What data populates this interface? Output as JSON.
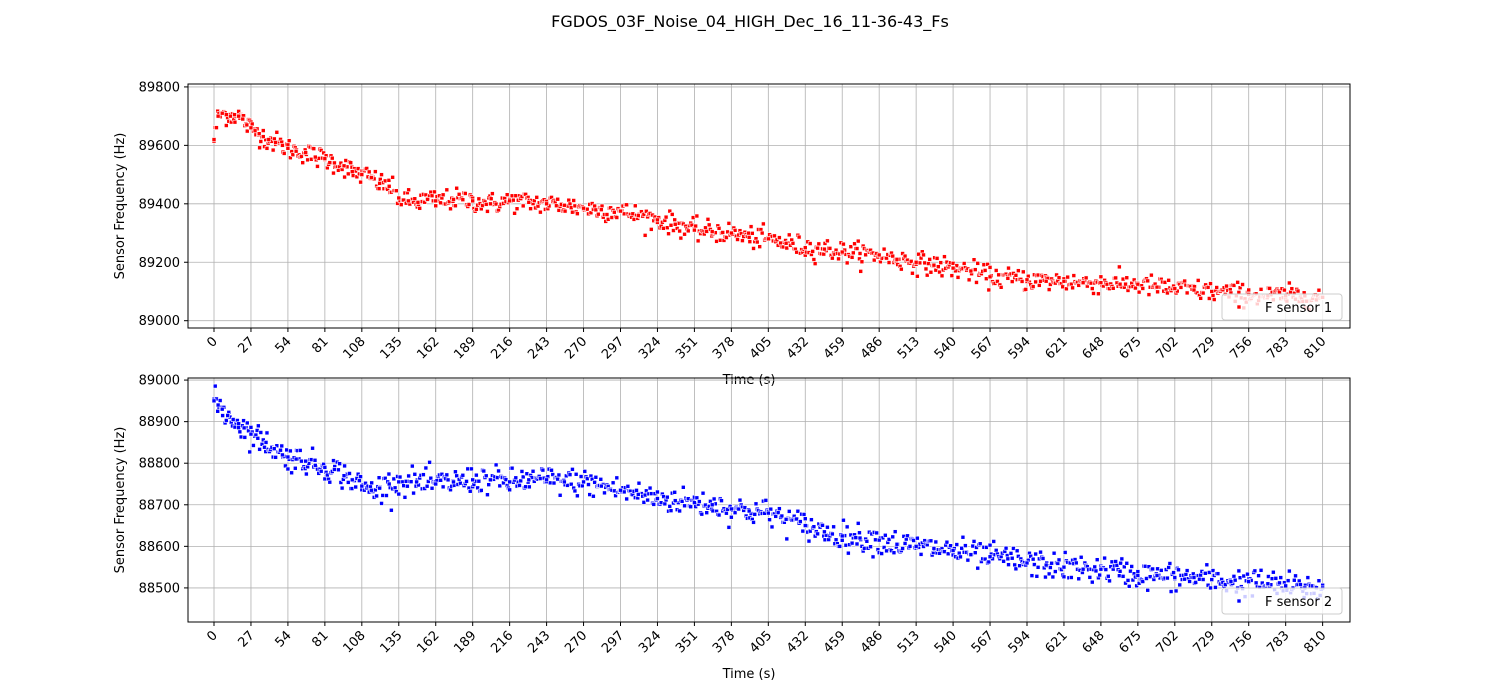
{
  "figure": {
    "suptitle": "FGDOS_03F_Noise_04_HIGH_Dec_16_11-36-43_Fs"
  },
  "chart_data": [
    {
      "type": "scatter",
      "title": "",
      "xlabel": "Time (s)",
      "ylabel": "Sensor Frequency (Hz)",
      "xlim": [
        -19,
        830
      ],
      "ylim": [
        88975,
        89810
      ],
      "xticks": [
        0,
        27,
        54,
        81,
        108,
        135,
        162,
        189,
        216,
        243,
        270,
        297,
        324,
        351,
        378,
        405,
        432,
        459,
        486,
        513,
        540,
        567,
        594,
        621,
        648,
        675,
        702,
        729,
        756,
        783,
        810
      ],
      "yticks": [
        89000,
        89200,
        89400,
        89600,
        89800
      ],
      "grid": true,
      "legend_position": "lower-right",
      "series": [
        {
          "name": "F sensor 1",
          "color": "#ff0000",
          "x": [
            0,
            3,
            6,
            9,
            12,
            15,
            18,
            21,
            24,
            27,
            30,
            33,
            36,
            40,
            45,
            50,
            54,
            60,
            67,
            74,
            81,
            88,
            95,
            101,
            108,
            115,
            121,
            128,
            135,
            142,
            149,
            156,
            162,
            175,
            189,
            202,
            216,
            230,
            243,
            256,
            270,
            283,
            297,
            310,
            324,
            337,
            351,
            364,
            378,
            391,
            405,
            418,
            432,
            446,
            459,
            472,
            486,
            499,
            513,
            526,
            540,
            553,
            567,
            580,
            594,
            608,
            621,
            635,
            648,
            662,
            675,
            689,
            702,
            716,
            729,
            743,
            756,
            770,
            783,
            797,
            810
          ],
          "y": [
            89620,
            89700,
            89710,
            89705,
            89700,
            89705,
            89700,
            89690,
            89670,
            89660,
            89650,
            89640,
            89630,
            89620,
            89610,
            89600,
            89590,
            89580,
            89575,
            89560,
            89555,
            89540,
            89530,
            89510,
            89500,
            89490,
            89470,
            89460,
            89420,
            89410,
            89405,
            89415,
            89410,
            89415,
            89410,
            89400,
            89410,
            89405,
            89400,
            89395,
            89385,
            89380,
            89375,
            89360,
            89345,
            89330,
            89310,
            89305,
            89300,
            89285,
            89280,
            89265,
            89250,
            89245,
            89235,
            89230,
            89225,
            89210,
            89200,
            89190,
            89180,
            89170,
            89150,
            89145,
            89140,
            89135,
            89135,
            89130,
            89130,
            89125,
            89125,
            89115,
            89110,
            89105,
            89100,
            89095,
            89090,
            89085,
            89085,
            89085,
            89080
          ]
        }
      ]
    },
    {
      "type": "scatter",
      "title": "",
      "xlabel": "Time (s)",
      "ylabel": "Sensor Frequency (Hz)",
      "xlim": [
        -19,
        830
      ],
      "ylim": [
        88418,
        89005
      ],
      "xticks": [
        0,
        27,
        54,
        81,
        108,
        135,
        162,
        189,
        216,
        243,
        270,
        297,
        324,
        351,
        378,
        405,
        432,
        459,
        486,
        513,
        540,
        567,
        594,
        621,
        648,
        675,
        702,
        729,
        756,
        783,
        810
      ],
      "yticks": [
        88500,
        88600,
        88700,
        88800,
        88900,
        89000
      ],
      "grid": true,
      "legend_position": "lower-right",
      "series": [
        {
          "name": "F sensor 2",
          "color": "#0000ff",
          "x": [
            0,
            3,
            6,
            10,
            14,
            18,
            22,
            27,
            32,
            38,
            44,
            50,
            54,
            60,
            67,
            74,
            81,
            88,
            95,
            101,
            108,
            115,
            121,
            128,
            135,
            148,
            162,
            175,
            189,
            202,
            216,
            230,
            243,
            256,
            270,
            283,
            297,
            310,
            324,
            337,
            351,
            364,
            378,
            391,
            405,
            418,
            432,
            446,
            459,
            472,
            486,
            499,
            513,
            526,
            540,
            553,
            567,
            580,
            594,
            608,
            621,
            635,
            648,
            662,
            675,
            689,
            702,
            716,
            729,
            743,
            756,
            770,
            783,
            797,
            810
          ],
          "y": [
            88950,
            88940,
            88930,
            88915,
            88905,
            88895,
            88885,
            88870,
            88860,
            88850,
            88835,
            88820,
            88815,
            88810,
            88805,
            88795,
            88790,
            88785,
            88770,
            88760,
            88745,
            88735,
            88740,
            88750,
            88755,
            88755,
            88750,
            88755,
            88760,
            88760,
            88755,
            88760,
            88760,
            88755,
            88755,
            88745,
            88735,
            88725,
            88715,
            88710,
            88705,
            88700,
            88690,
            88685,
            88680,
            88665,
            88650,
            88635,
            88625,
            88620,
            88615,
            88605,
            88600,
            88595,
            88590,
            88580,
            88575,
            88570,
            88560,
            88555,
            88550,
            88545,
            88545,
            88540,
            88530,
            88530,
            88525,
            88525,
            88520,
            88515,
            88515,
            88510,
            88505,
            88500,
            88500
          ]
        }
      ]
    }
  ]
}
